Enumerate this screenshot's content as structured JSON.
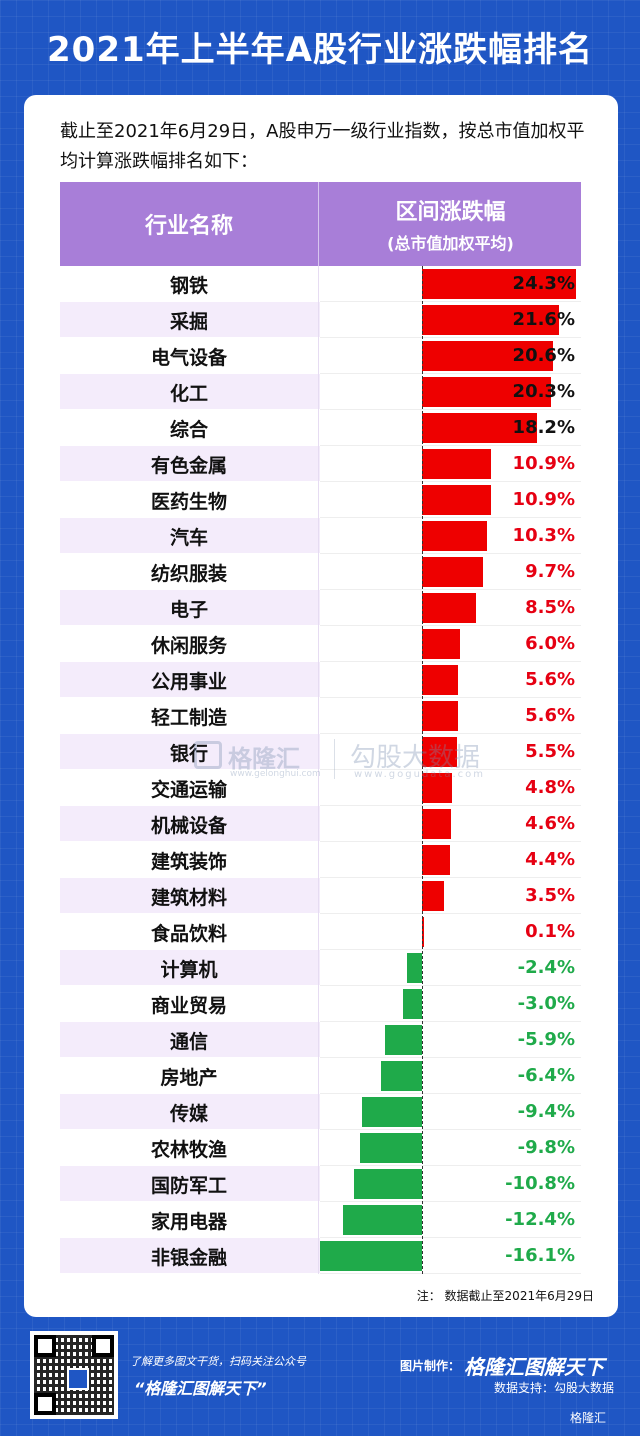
{
  "title": "2021年上半年A股行业涨跌幅排名",
  "intro": "截止至2021年6月29日，A股申万一级行业指数，按总市值加权平均计算涨跌幅排名如下：",
  "table": {
    "col_name": "行业名称",
    "col_range_1": "区间涨跌幅",
    "col_range_2": "(总市值加权平均)"
  },
  "chart_data": {
    "type": "bar",
    "orientation": "horizontal",
    "categories": [
      "钢铁",
      "采掘",
      "电气设备",
      "化工",
      "综合",
      "有色金属",
      "医药生物",
      "汽车",
      "纺织服装",
      "电子",
      "休闲服务",
      "公用事业",
      "轻工制造",
      "银行",
      "交通运输",
      "机械设备",
      "建筑装饰",
      "建筑材料",
      "食品饮料",
      "计算机",
      "商业贸易",
      "通信",
      "房地产",
      "传媒",
      "农林牧渔",
      "国防军工",
      "家用电器",
      "非银金融"
    ],
    "values": [
      24.3,
      21.6,
      20.6,
      20.3,
      18.2,
      10.9,
      10.9,
      10.3,
      9.7,
      8.5,
      6.0,
      5.6,
      5.6,
      5.5,
      4.8,
      4.6,
      4.4,
      3.5,
      0.1,
      -2.4,
      -3.0,
      -5.9,
      -6.4,
      -9.4,
      -9.8,
      -10.8,
      -12.4,
      -16.1
    ],
    "labels": [
      "24.3%",
      "21.6%",
      "20.6%",
      "20.3%",
      "18.2%",
      "10.9%",
      "10.9%",
      "10.3%",
      "9.7%",
      "8.5%",
      "6.0%",
      "5.6%",
      "5.6%",
      "5.5%",
      "4.8%",
      "4.6%",
      "4.4%",
      "3.5%",
      "0.1%",
      "-2.4%",
      "-3.0%",
      "-5.9%",
      "-6.4%",
      "-9.4%",
      "-9.8%",
      "-10.8%",
      "-12.4%",
      "-16.1%"
    ],
    "xlim": [
      -16.1,
      24.3
    ],
    "colors": {
      "positive": "#ee0000",
      "negative": "#1faa4a",
      "header": "#a87ed8"
    }
  },
  "note": "注：  数据截止至2021年6月29日",
  "watermark": {
    "brand": "格隆汇",
    "brand_sub": "www.gelonghui.com",
    "data_brand": "勾股大数据",
    "data_sub": "www.gogudata.com"
  },
  "footer": {
    "line1": "了解更多图文干货，扫码关注公众号",
    "line2": "“格隆汇图解天下”",
    "made_by_label": "图片制作：",
    "made_by_brand": "格隆汇图解天下",
    "data_support": "数据支持：勾股大数据",
    "corner_brand": "格隆汇"
  }
}
